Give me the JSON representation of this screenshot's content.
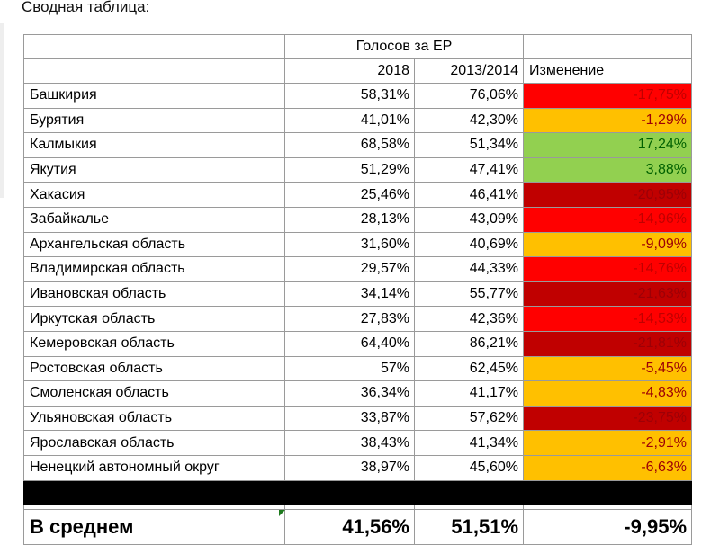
{
  "caption": "Сводная таблица:",
  "header": {
    "group_label": "Голосов за ЕР",
    "col_2018": "2018",
    "col_2013": "2013/2014",
    "col_change": "Изменение"
  },
  "rows": [
    {
      "region": "Башкирия",
      "v2018": "58,31%",
      "v2013": "76,06%",
      "change": "-17,75%",
      "status": "red"
    },
    {
      "region": "Бурятия",
      "v2018": "41,01%",
      "v2013": "42,30%",
      "change": "-1,29%",
      "status": "orange"
    },
    {
      "region": "Калмыкия",
      "v2018": "68,58%",
      "v2013": "51,34%",
      "change": "17,24%",
      "status": "green"
    },
    {
      "region": "Якутия",
      "v2018": "51,29%",
      "v2013": "47,41%",
      "change": "3,88%",
      "status": "green"
    },
    {
      "region": "Хакасия",
      "v2018": "25,46%",
      "v2013": "46,41%",
      "change": "-20,95%",
      "status": "darkred"
    },
    {
      "region": "Забайкалье",
      "v2018": "28,13%",
      "v2013": "43,09%",
      "change": "-14,96%",
      "status": "red"
    },
    {
      "region": "Архангельская область",
      "v2018": "31,60%",
      "v2013": "40,69%",
      "change": "-9,09%",
      "status": "orange"
    },
    {
      "region": "Владимирская область",
      "v2018": "29,57%",
      "v2013": "44,33%",
      "change": "-14,76%",
      "status": "red"
    },
    {
      "region": "Ивановская область",
      "v2018": "34,14%",
      "v2013": "55,77%",
      "change": "-21,63%",
      "status": "darkred"
    },
    {
      "region": "Иркутская область",
      "v2018": "27,83%",
      "v2013": "42,36%",
      "change": "-14,53%",
      "status": "red"
    },
    {
      "region": "Кемеровская область",
      "v2018": "64,40%",
      "v2013": "86,21%",
      "change": "-21,81%",
      "status": "darkred"
    },
    {
      "region": "Ростовская область",
      "v2018": "57%",
      "v2013": "62,45%",
      "change": "-5,45%",
      "status": "orange"
    },
    {
      "region": "Смоленская область",
      "v2018": "36,34%",
      "v2013": "41,17%",
      "change": "-4,83%",
      "status": "orange"
    },
    {
      "region": "Ульяновская область",
      "v2018": "33,87%",
      "v2013": "57,62%",
      "change": "-23,75%",
      "status": "darkred"
    },
    {
      "region": "Ярославская область",
      "v2018": "38,43%",
      "v2013": "41,34%",
      "change": "-2,91%",
      "status": "orange"
    },
    {
      "region": "Ненецкий автономный округ",
      "v2018": "38,97%",
      "v2013": "45,60%",
      "change": "-6,63%",
      "status": "orange"
    }
  ],
  "average": {
    "label": "В среднем",
    "v2018": "41,56%",
    "v2013": "51,51%",
    "change": "-9,95%"
  },
  "colors": {
    "red": "#ff0000",
    "darkred": "#c00000",
    "orange": "#ffc000",
    "green": "#92d050",
    "grid": "#9a9a9a"
  }
}
